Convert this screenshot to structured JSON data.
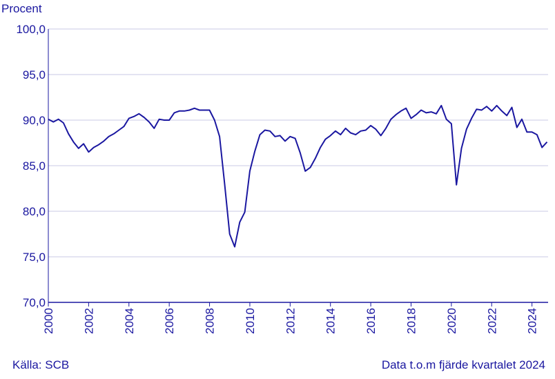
{
  "chart_data": {
    "type": "line",
    "ylabel": "Procent",
    "xlabel": "",
    "ylim": [
      70,
      100
    ],
    "xlim": [
      2000,
      2024.8
    ],
    "yticks": [
      100,
      95,
      90,
      85,
      80,
      75,
      70
    ],
    "ytick_labels": [
      "100,0",
      "95,0",
      "90,0",
      "85,0",
      "80,0",
      "75,0",
      "70,0"
    ],
    "xticks": [
      "2000",
      "2002",
      "2004",
      "2006",
      "2008",
      "2010",
      "2012",
      "2014",
      "2016",
      "2018",
      "2020",
      "2022",
      "2024"
    ],
    "grid": "horizontal",
    "color": "#1a17a0",
    "series": [
      {
        "x": [
          2000.0,
          2000.25,
          2000.5,
          2000.75,
          2001.0,
          2001.25,
          2001.5,
          2001.75,
          2002.0,
          2002.25,
          2002.5,
          2002.75,
          2003.0,
          2003.25,
          2003.5,
          2003.75,
          2004.0,
          2004.25,
          2004.5,
          2004.75,
          2005.0,
          2005.25,
          2005.5,
          2005.75,
          2006.0,
          2006.25,
          2006.5,
          2006.75,
          2007.0,
          2007.25,
          2007.5,
          2007.75,
          2008.0,
          2008.25,
          2008.5,
          2008.75,
          2009.0,
          2009.25,
          2009.5,
          2009.75,
          2010.0,
          2010.25,
          2010.5,
          2010.75,
          2011.0,
          2011.25,
          2011.5,
          2011.75,
          2012.0,
          2012.25,
          2012.5,
          2012.75,
          2013.0,
          2013.25,
          2013.5,
          2013.75,
          2014.0,
          2014.25,
          2014.5,
          2014.75,
          2015.0,
          2015.25,
          2015.5,
          2015.75,
          2016.0,
          2016.25,
          2016.5,
          2016.75,
          2017.0,
          2017.25,
          2017.5,
          2017.75,
          2018.0,
          2018.25,
          2018.5,
          2018.75,
          2019.0,
          2019.25,
          2019.5,
          2019.75,
          2020.0,
          2020.25,
          2020.5,
          2020.75,
          2021.0,
          2021.25,
          2021.5,
          2021.75,
          2022.0,
          2022.25,
          2022.5,
          2022.75,
          2023.0,
          2023.25,
          2023.5,
          2023.75,
          2024.0,
          2024.25,
          2024.5,
          2024.75
        ],
        "y": [
          90.1,
          89.8,
          90.1,
          89.7,
          88.5,
          87.6,
          86.9,
          87.4,
          86.5,
          87.0,
          87.3,
          87.7,
          88.2,
          88.5,
          88.9,
          89.3,
          90.2,
          90.4,
          90.7,
          90.3,
          89.8,
          89.1,
          90.1,
          90.0,
          90.0,
          90.8,
          91.0,
          91.0,
          91.1,
          91.3,
          91.1,
          91.1,
          91.1,
          90.0,
          88.2,
          83.0,
          77.5,
          76.1,
          78.8,
          79.9,
          84.4,
          86.6,
          88.4,
          88.9,
          88.8,
          88.2,
          88.3,
          87.7,
          88.2,
          88.0,
          86.4,
          84.4,
          84.8,
          85.8,
          87.0,
          87.9,
          88.3,
          88.8,
          88.4,
          89.1,
          88.6,
          88.4,
          88.8,
          88.9,
          89.4,
          89.0,
          88.3,
          89.1,
          90.1,
          90.6,
          91.0,
          91.3,
          90.2,
          90.6,
          91.1,
          90.8,
          90.9,
          90.7,
          91.6,
          90.1,
          89.6,
          82.9,
          86.9,
          89.0,
          90.2,
          91.2,
          91.1,
          91.5,
          91.0,
          91.6,
          91.0,
          90.5,
          91.4,
          89.2,
          90.1,
          88.7,
          88.7,
          88.4,
          87.0,
          87.6
        ]
      }
    ],
    "source": "Källa: SCB",
    "note": "Data t.o.m fjärde kvartalet 2024"
  }
}
